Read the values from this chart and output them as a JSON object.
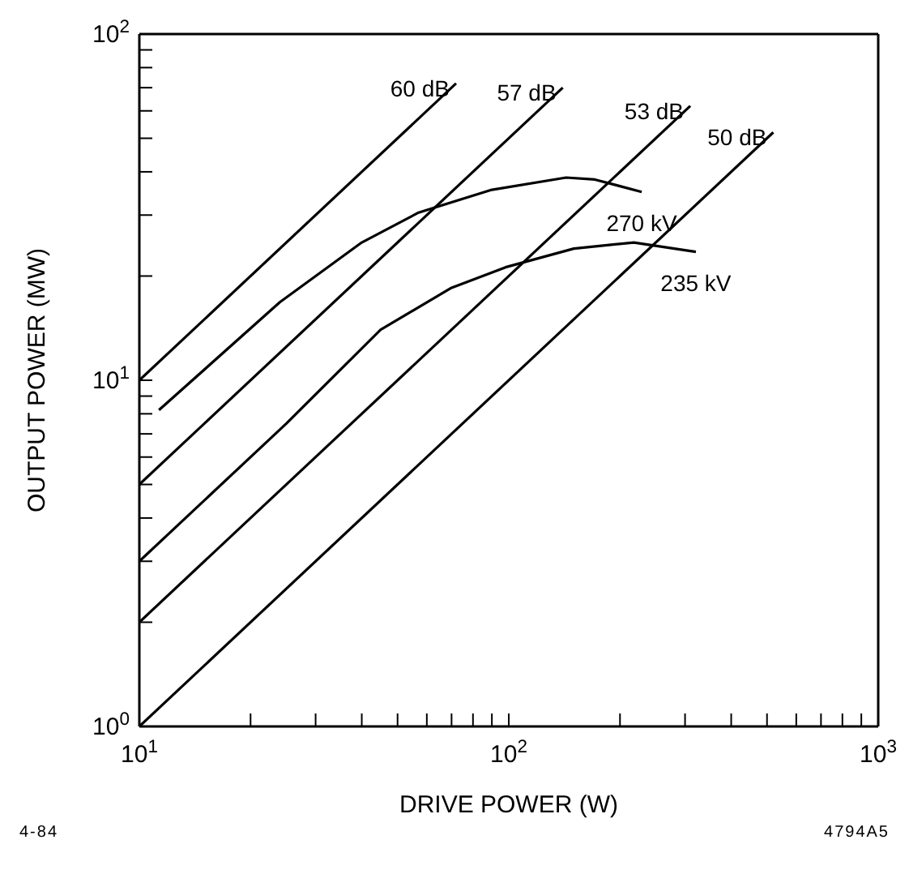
{
  "chart_data": {
    "type": "line",
    "xlabel": "DRIVE POWER    (W)",
    "ylabel": "OUTPUT POWER   (MW)",
    "log": "xy",
    "marker": "none",
    "line_style": "solid",
    "xlim": [
      10,
      1000
    ],
    "ylim": [
      1,
      100
    ],
    "xticks": [
      {
        "value": 10,
        "label": "10$^{1}$"
      },
      {
        "value": 20,
        "label": null
      },
      {
        "value": 30,
        "label": null
      },
      {
        "value": 40,
        "label": null
      },
      {
        "value": 50,
        "label": null
      },
      {
        "value": 60,
        "label": null
      },
      {
        "value": 70,
        "label": null
      },
      {
        "value": 80,
        "label": null
      },
      {
        "value": 90,
        "label": null
      },
      {
        "value": 100,
        "label": "10$^{2}$"
      },
      {
        "value": 200,
        "label": null
      },
      {
        "value": 300,
        "label": null
      },
      {
        "value": 400,
        "label": null
      },
      {
        "value": 500,
        "label": null
      },
      {
        "value": 600,
        "label": null
      },
      {
        "value": 700,
        "label": null
      },
      {
        "value": 800,
        "label": null
      },
      {
        "value": 900,
        "label": null
      },
      {
        "value": 1000,
        "label": "10$^{3}$"
      }
    ],
    "yticks": [
      {
        "value": 1,
        "label": "10$^{0}$"
      },
      {
        "value": 2,
        "label": null
      },
      {
        "value": 3,
        "label": null
      },
      {
        "value": 4,
        "label": null
      },
      {
        "value": 5,
        "label": null
      },
      {
        "value": 6,
        "label": null
      },
      {
        "value": 7,
        "label": null
      },
      {
        "value": 8,
        "label": null
      },
      {
        "value": 9,
        "label": null
      },
      {
        "value": 10,
        "label": "10$^{1}$"
      },
      {
        "value": 20,
        "label": null
      },
      {
        "value": 30,
        "label": null
      },
      {
        "value": 40,
        "label": null
      },
      {
        "value": 50,
        "label": null
      },
      {
        "value": 60,
        "label": null
      },
      {
        "value": 70,
        "label": null
      },
      {
        "value": 80,
        "label": null
      },
      {
        "value": 90,
        "label": null
      },
      {
        "value": 100,
        "label": "10$^{2}$"
      }
    ],
    "series": [
      {
        "name": "60 dB",
        "color": "#000000",
        "x": [
          10,
          72
        ],
        "values": [
          10,
          72
        ]
      },
      {
        "name": "57 dB",
        "color": "#000000",
        "x": [
          10,
          140
        ],
        "values": [
          5,
          70
        ]
      },
      {
        "name": "53 dB",
        "color": "#000000",
        "x": [
          10,
          310
        ],
        "values": [
          2,
          62
        ]
      },
      {
        "name": "50 dB",
        "color": "#000000",
        "x": [
          10,
          520
        ],
        "values": [
          1,
          52
        ]
      },
      {
        "name": "270 kV",
        "color": "#000000",
        "x": [
          11.3,
          24,
          40,
          57,
          90,
          143,
          171,
          229
        ],
        "values": [
          8.2,
          16.8,
          25,
          30.5,
          35.5,
          38.5,
          38,
          35
        ]
      },
      {
        "name": "235 kV",
        "color": "#000000",
        "x": [
          10,
          25,
          45,
          70,
          98,
          150,
          218,
          321
        ],
        "values": [
          3,
          7.5,
          14,
          18.5,
          21.2,
          24,
          25,
          23.5
        ]
      }
    ],
    "annotations": [
      "4-84",
      "4794A5"
    ]
  }
}
